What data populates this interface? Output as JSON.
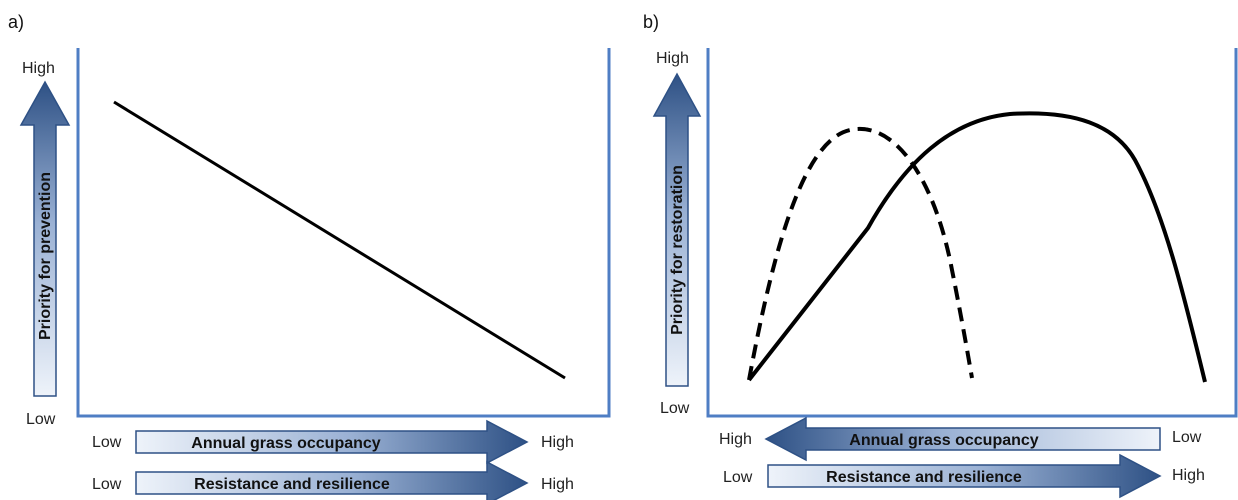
{
  "panel_a": {
    "tag": "a)",
    "y_high": "High",
    "y_low": "Low",
    "y_arrow_label": "Priority for prevention",
    "x_arrow1": {
      "low": "Low",
      "label": "Annual grass occupancy",
      "high": "High"
    },
    "x_arrow2": {
      "low": "Low",
      "label": "Resistance and resilience",
      "high": "High"
    }
  },
  "panel_b": {
    "tag": "b)",
    "y_high": "High",
    "y_low": "Low",
    "y_arrow_label": "Priority for restoration",
    "x_arrow1": {
      "left": "High",
      "label": "Annual grass occupancy",
      "right": "Low"
    },
    "x_arrow2": {
      "low": "Low",
      "label": "Resistance and resilience",
      "high": "High"
    }
  },
  "colors": {
    "axis": "#4f7ec4",
    "arrow_dark": "#2e5185",
    "arrow_light": "#e6edf7",
    "curve": "#000000"
  }
}
